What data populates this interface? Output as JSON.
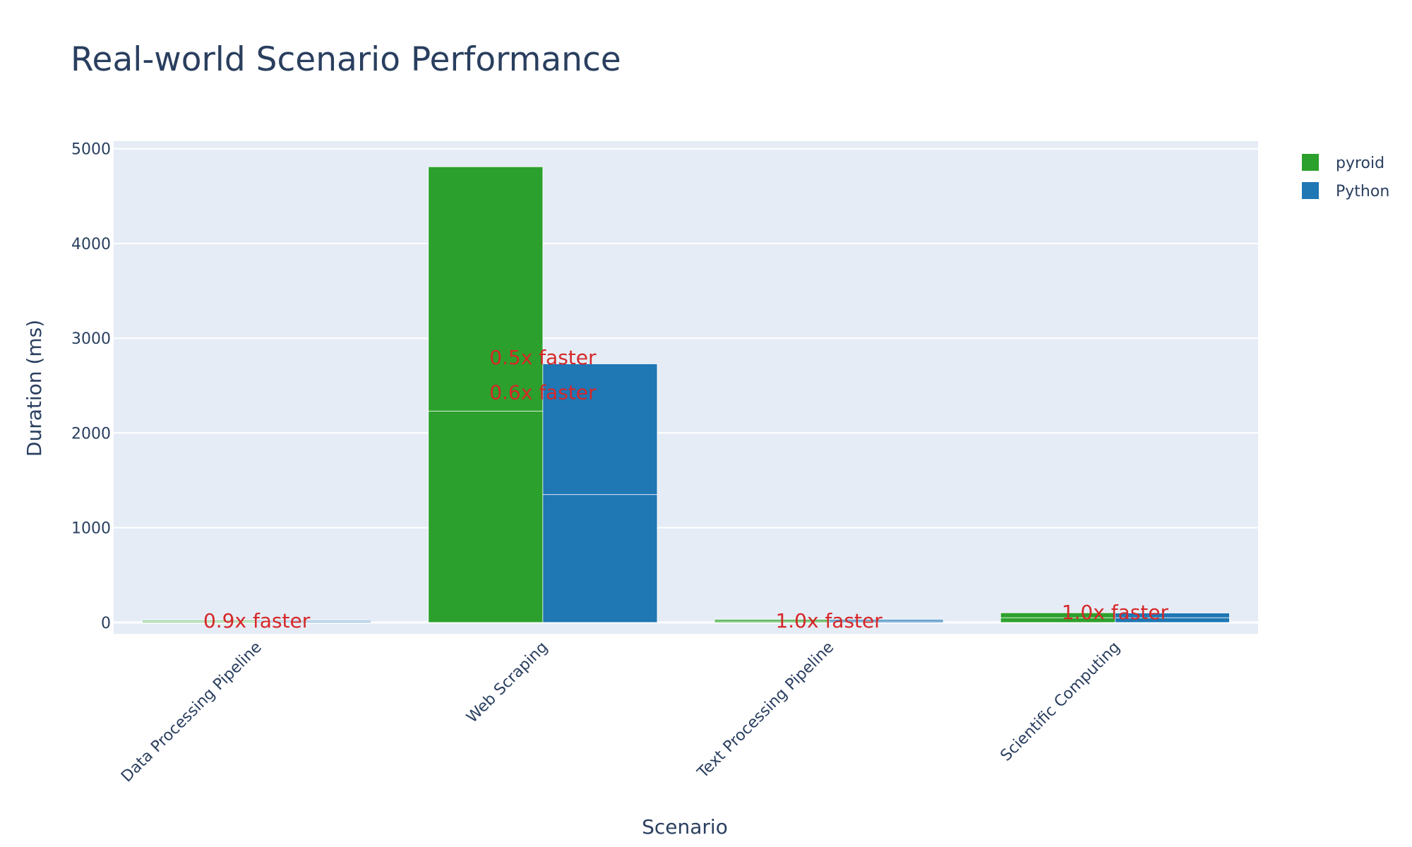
{
  "chart_data": {
    "type": "bar",
    "title": "Real-world Scenario Performance",
    "xlabel": "Scenario",
    "ylabel": "Duration (ms)",
    "categories": [
      "Data Processing Pipeline",
      "Web Scraping",
      "Text Processing Pipeline",
      "Scientific Computing"
    ],
    "yticks": [
      0,
      1000,
      2000,
      3000,
      4000,
      5000
    ],
    "ylim": [
      -120,
      5080
    ],
    "grid": true,
    "legend_position": "top-right",
    "series": [
      {
        "name": "pyroid",
        "color": "#2ca02c",
        "stacked_segments": [
          [
            10,
            11
          ],
          [
            2230,
            2580
          ],
          [
            15,
            17
          ],
          [
            50,
            52
          ]
        ]
      },
      {
        "name": "Python",
        "color": "#1f77b4",
        "stacked_segments": [
          [
            10,
            10
          ],
          [
            1350,
            1380
          ],
          [
            15,
            16
          ],
          [
            50,
            50
          ]
        ]
      }
    ],
    "annotations": [
      {
        "text": "0.9x faster",
        "category": "Data Processing Pipeline",
        "y": 20
      },
      {
        "text": "0.5x faster",
        "category": "Web Scraping",
        "y": 2800
      },
      {
        "text": "0.6x faster",
        "category": "Web Scraping",
        "y": 2430
      },
      {
        "text": "1.0x faster",
        "category": "Text Processing Pipeline",
        "y": 20
      },
      {
        "text": "1.0x faster",
        "category": "Scientific Computing",
        "y": 110
      }
    ]
  }
}
